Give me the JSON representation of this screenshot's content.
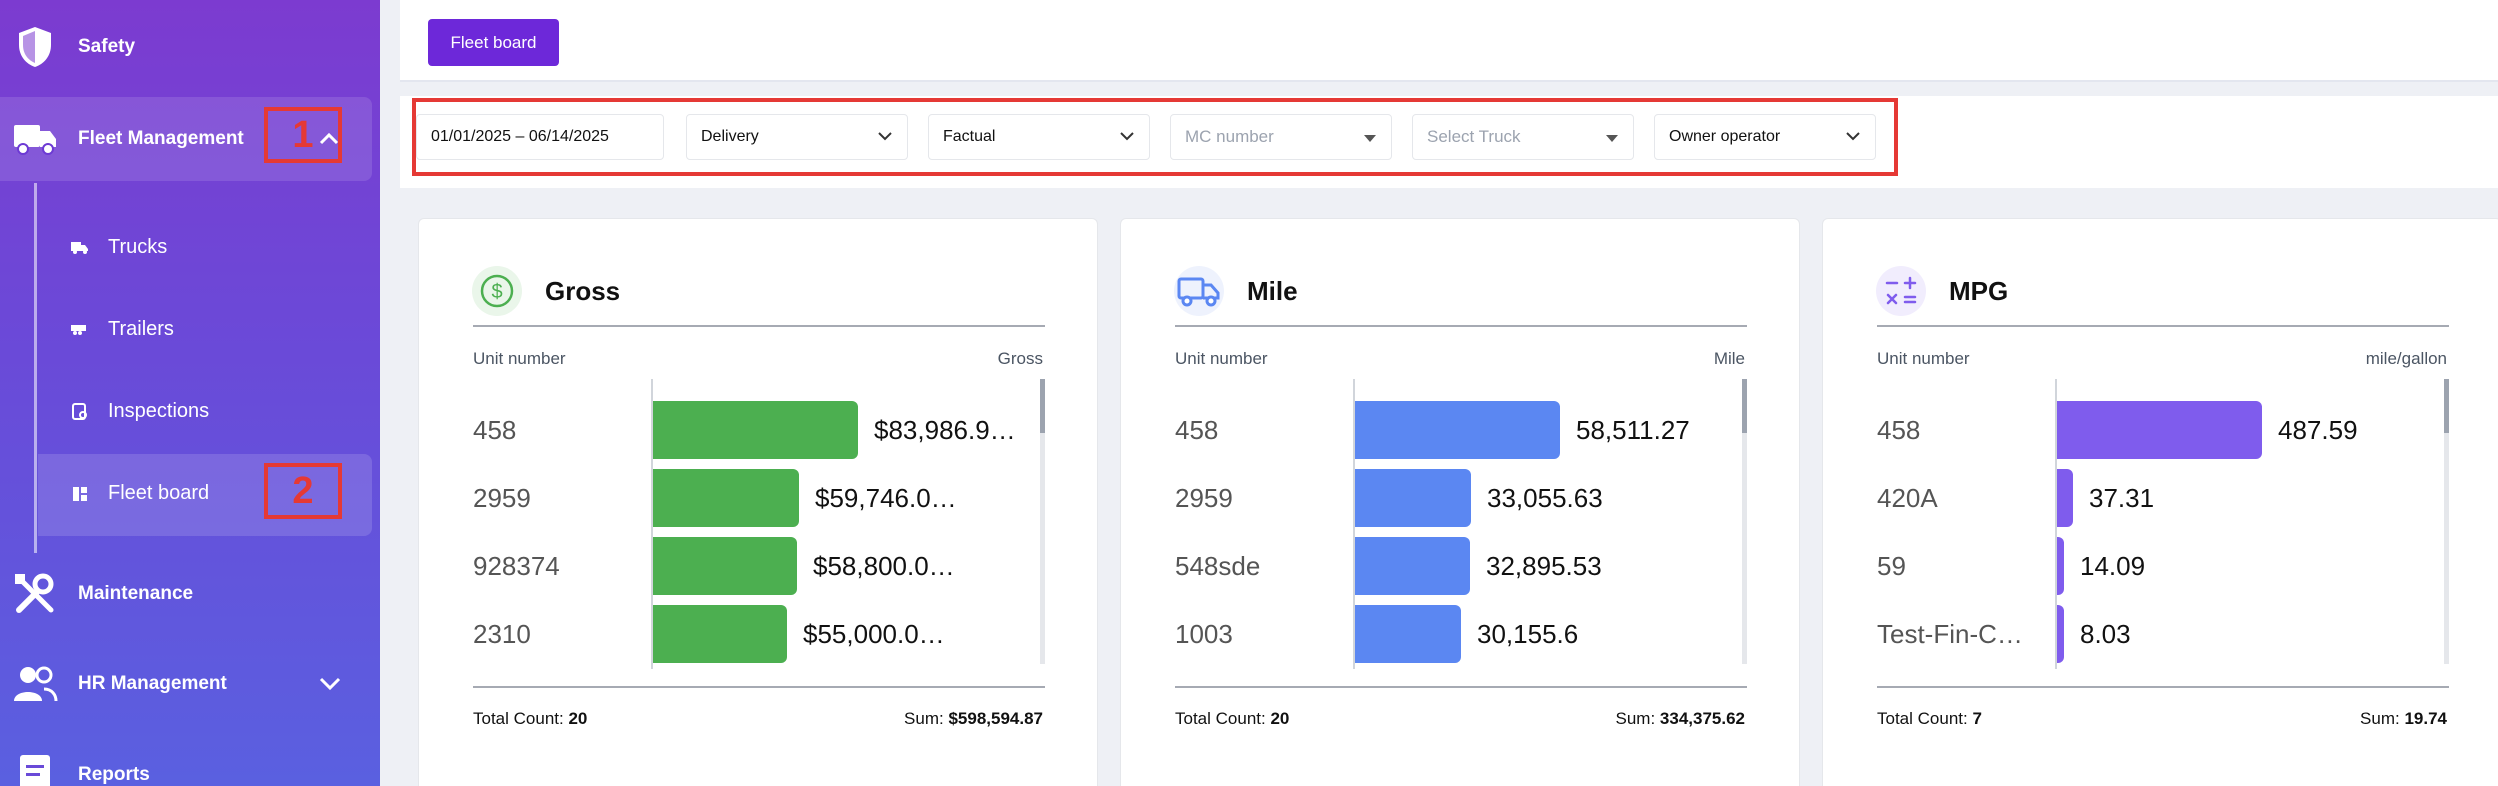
{
  "sidebar": {
    "items": [
      {
        "label": "Safety",
        "icon": "shield-icon"
      },
      {
        "label": "Fleet Management",
        "icon": "truck-icon"
      },
      {
        "label": "Maintenance",
        "icon": "tools-icon"
      },
      {
        "label": "HR Management",
        "icon": "people-icon"
      },
      {
        "label": "Reports",
        "icon": "report-icon"
      }
    ],
    "sub_items": [
      {
        "label": "Trucks",
        "icon": "truck-small-icon"
      },
      {
        "label": "Trailers",
        "icon": "trailer-icon"
      },
      {
        "label": "Inspections",
        "icon": "inspection-icon"
      },
      {
        "label": "Fleet board",
        "icon": "board-icon"
      }
    ]
  },
  "annotations": {
    "one": "1",
    "two": "2",
    "color": "#e53935"
  },
  "topbar": {
    "fleet_board_label": "Fleet board"
  },
  "filters": {
    "date_range": "01/01/2025 – 06/14/2025",
    "load_type": "Delivery",
    "data_type": "Factual",
    "mc_placeholder": "MC number",
    "truck_placeholder": "Select Truck",
    "operator": "Owner operator"
  },
  "cards": [
    {
      "title": "Gross",
      "icon": "dollar-icon",
      "color": "#4caf50",
      "col_left": "Unit number",
      "col_right": "Gross",
      "rows": [
        {
          "unit": "458",
          "value": "$83,986.9…",
          "raw": 83986.9
        },
        {
          "unit": "2959",
          "value": "$59,746.0…",
          "raw": 59746.0
        },
        {
          "unit": "928374",
          "value": "$58,800.0…",
          "raw": 58800.0
        },
        {
          "unit": "2310",
          "value": "$55,000.0…",
          "raw": 55000.0
        }
      ],
      "total_count_label": "Total Count:",
      "total_count": "20",
      "sum_label": "Sum:",
      "sum": "$598,594.87"
    },
    {
      "title": "Mile",
      "icon": "truck-icon",
      "color": "#5b87f2",
      "col_left": "Unit number",
      "col_right": "Mile",
      "rows": [
        {
          "unit": "458",
          "value": "58,511.27",
          "raw": 58511.27
        },
        {
          "unit": "2959",
          "value": "33,055.63",
          "raw": 33055.63
        },
        {
          "unit": "548sde",
          "value": "32,895.53",
          "raw": 32895.53
        },
        {
          "unit": "1003",
          "value": "30,155.6",
          "raw": 30155.6
        }
      ],
      "total_count_label": "Total Count:",
      "total_count": "20",
      "sum_label": "Sum:",
      "sum": "334,375.62"
    },
    {
      "title": "MPG",
      "icon": "math-icon",
      "color": "#7f5ced",
      "col_left": "Unit number",
      "col_right": "mile/gallon",
      "rows": [
        {
          "unit": "458",
          "value": "487.59",
          "raw": 487.59
        },
        {
          "unit": "420A",
          "value": "37.31",
          "raw": 37.31
        },
        {
          "unit": "59",
          "value": "14.09",
          "raw": 14.09
        },
        {
          "unit": "Test-Fin-C…",
          "value": "8.03",
          "raw": 8.03
        }
      ],
      "total_count_label": "Total Count:",
      "total_count": "7",
      "sum_label": "Sum:",
      "sum": "19.74"
    }
  ]
}
